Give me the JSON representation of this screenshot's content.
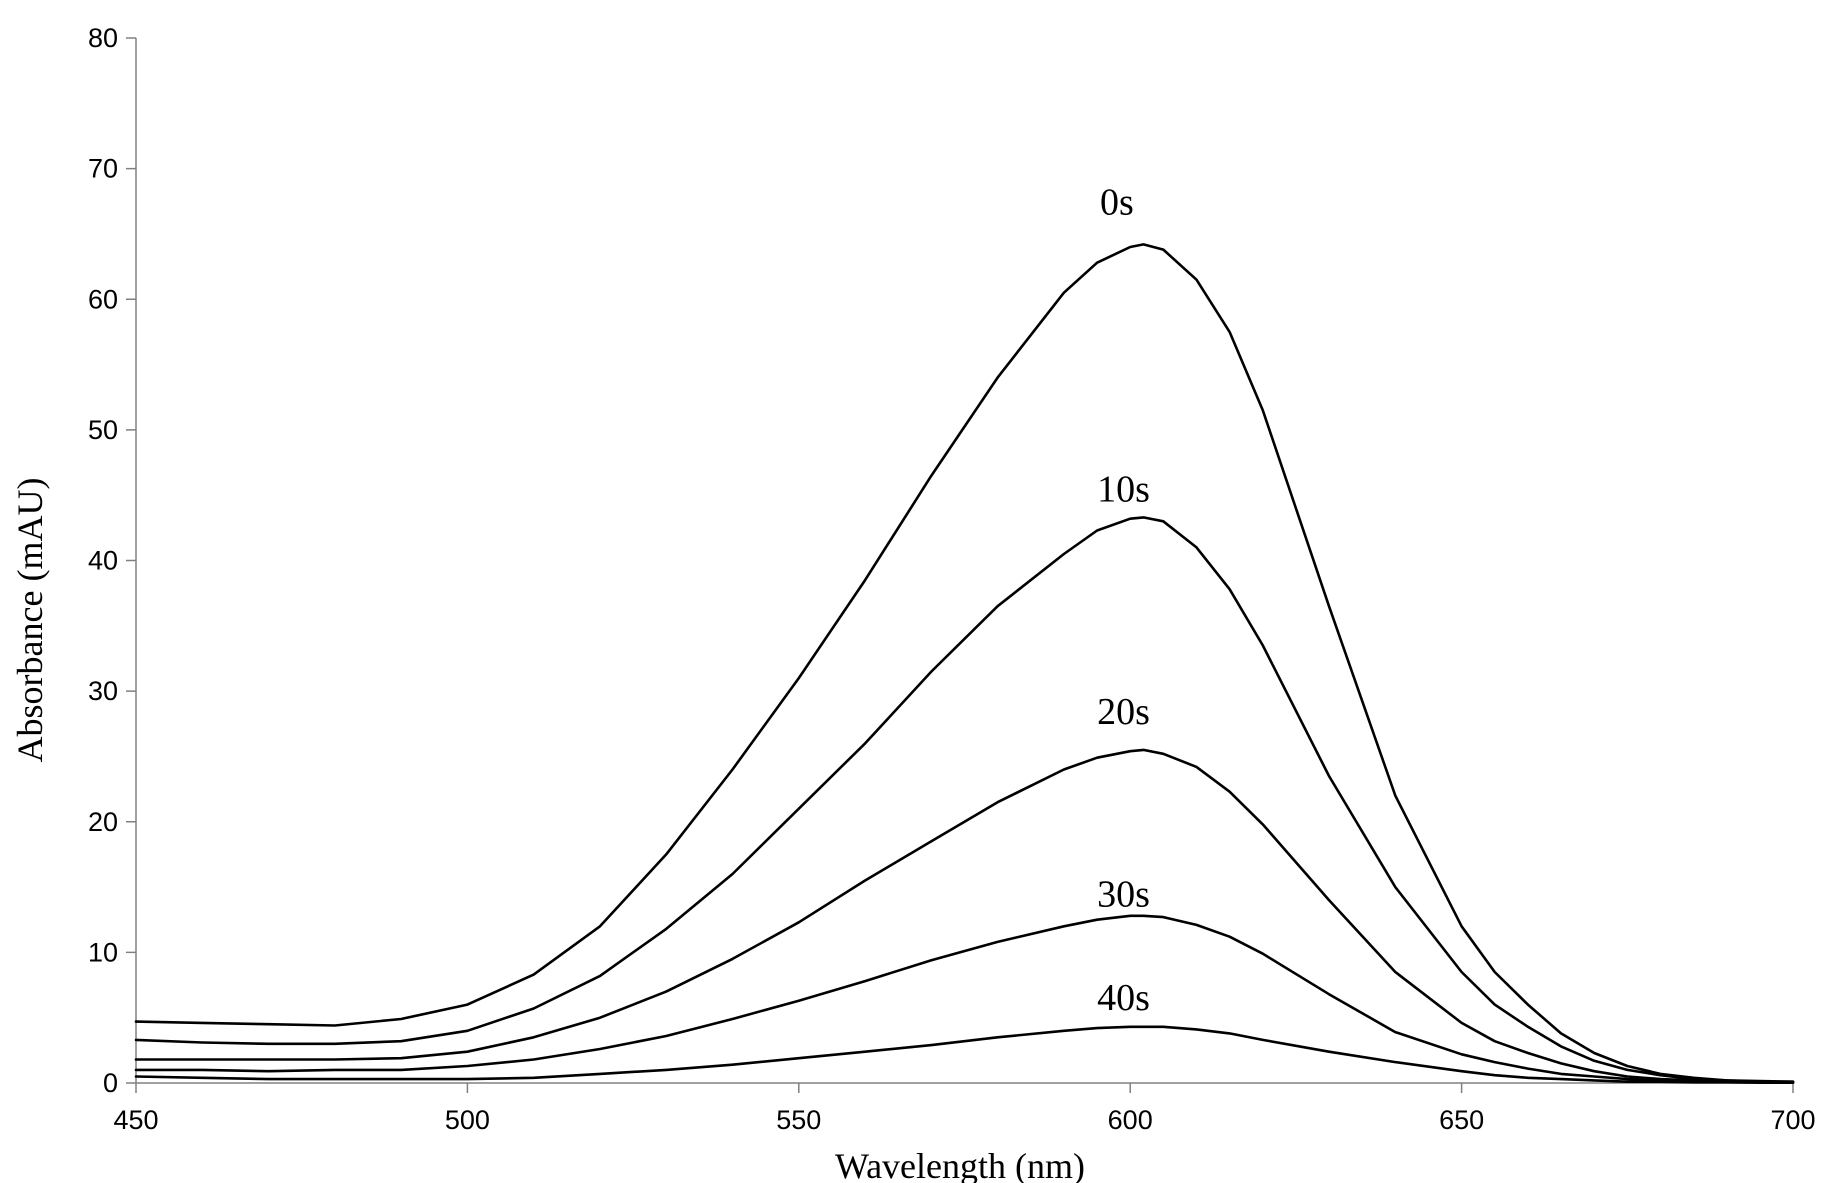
{
  "chart_data": {
    "type": "line",
    "title": "",
    "xlabel": "Wavelength (nm)",
    "ylabel": "Absorbance (mAU)",
    "xlim": [
      450,
      700
    ],
    "ylim": [
      0,
      80
    ],
    "x_ticks": [
      450,
      500,
      550,
      600,
      650,
      700
    ],
    "y_ticks": [
      0,
      10,
      20,
      30,
      40,
      50,
      60,
      70,
      80
    ],
    "grid": false,
    "legend": "none",
    "x": [
      450,
      460,
      470,
      480,
      490,
      500,
      510,
      520,
      530,
      540,
      550,
      560,
      570,
      580,
      590,
      595,
      600,
      602,
      605,
      610,
      615,
      620,
      630,
      640,
      650,
      655,
      660,
      665,
      670,
      675,
      680,
      685,
      690,
      695,
      700
    ],
    "series": [
      {
        "name": "0s",
        "color": "#000000",
        "values": [
          4.7,
          4.6,
          4.5,
          4.4,
          4.9,
          6.0,
          8.3,
          12.0,
          17.5,
          24.0,
          31.0,
          38.5,
          46.5,
          54.0,
          60.5,
          62.8,
          64.0,
          64.2,
          63.8,
          61.5,
          57.5,
          51.5,
          36.5,
          22.0,
          12.0,
          8.5,
          6.0,
          3.8,
          2.3,
          1.3,
          0.7,
          0.4,
          0.2,
          0.15,
          0.1
        ]
      },
      {
        "name": "10s",
        "color": "#000000",
        "values": [
          3.3,
          3.1,
          3.0,
          3.0,
          3.2,
          4.0,
          5.7,
          8.2,
          11.8,
          16.0,
          21.0,
          26.0,
          31.5,
          36.5,
          40.5,
          42.3,
          43.2,
          43.3,
          43.0,
          41.0,
          37.8,
          33.5,
          23.5,
          15.0,
          8.5,
          6.0,
          4.3,
          2.8,
          1.7,
          1.0,
          0.6,
          0.3,
          0.2,
          0.1,
          0.1
        ]
      },
      {
        "name": "20s",
        "color": "#000000",
        "values": [
          1.8,
          1.8,
          1.8,
          1.8,
          1.9,
          2.4,
          3.5,
          5.0,
          7.0,
          9.5,
          12.3,
          15.5,
          18.5,
          21.5,
          24.0,
          24.9,
          25.4,
          25.5,
          25.2,
          24.2,
          22.3,
          19.8,
          14.0,
          8.5,
          4.6,
          3.2,
          2.3,
          1.5,
          0.9,
          0.5,
          0.3,
          0.2,
          0.1,
          0.1,
          0.05
        ]
      },
      {
        "name": "30s",
        "color": "#000000",
        "values": [
          1.0,
          1.0,
          0.9,
          1.0,
          1.0,
          1.3,
          1.8,
          2.6,
          3.6,
          4.9,
          6.3,
          7.8,
          9.4,
          10.8,
          12.0,
          12.5,
          12.8,
          12.8,
          12.7,
          12.1,
          11.2,
          9.9,
          6.8,
          3.9,
          2.2,
          1.6,
          1.1,
          0.7,
          0.5,
          0.3,
          0.2,
          0.1,
          0.1,
          0.05,
          0.05
        ]
      },
      {
        "name": "40s",
        "color": "#000000",
        "values": [
          0.5,
          0.4,
          0.3,
          0.3,
          0.3,
          0.3,
          0.4,
          0.7,
          1.0,
          1.4,
          1.9,
          2.4,
          2.9,
          3.5,
          4.0,
          4.2,
          4.3,
          4.3,
          4.3,
          4.1,
          3.8,
          3.3,
          2.4,
          1.6,
          0.9,
          0.6,
          0.4,
          0.3,
          0.2,
          0.1,
          0.1,
          0.05,
          0.05,
          0.02,
          0.02
        ]
      }
    ],
    "annotations": [
      {
        "text": "0s",
        "x": 598,
        "y": 66.5
      },
      {
        "text": "10s",
        "x": 599,
        "y": 44.5
      },
      {
        "text": "20s",
        "x": 599,
        "y": 27.5
      },
      {
        "text": "30s",
        "x": 599,
        "y": 13.5
      },
      {
        "text": "40s",
        "x": 599,
        "y": 5.6
      }
    ]
  }
}
